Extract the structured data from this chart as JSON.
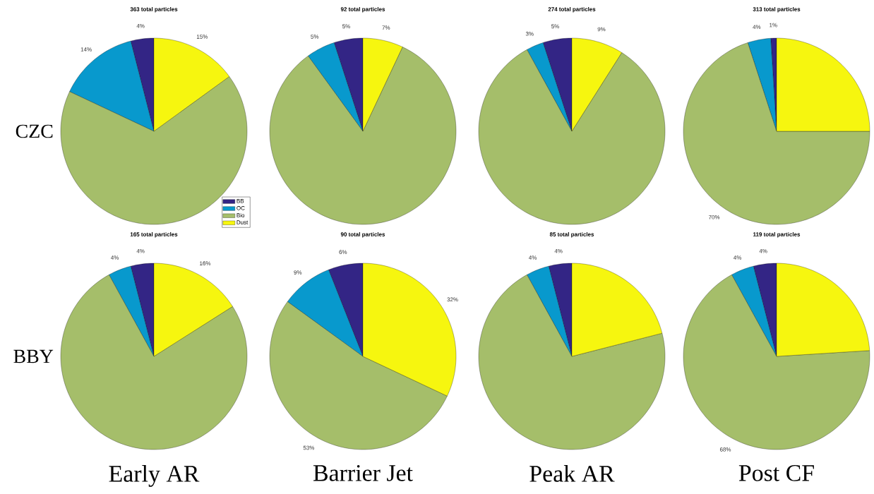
{
  "chart_data": [
    {
      "type": "pie",
      "title": "363 total particles",
      "ylabel": "CZC",
      "legend": "bottom right",
      "categories": [
        "BB",
        "OC",
        "Bio",
        "Dust"
      ],
      "values": [
        4,
        14,
        67,
        15
      ],
      "value_labels": [
        "4%",
        "14%",
        null,
        "15%"
      ],
      "colors": [
        "#332585",
        "#0899cd",
        "#a5be6a",
        "#f6f60f"
      ]
    },
    {
      "type": "pie",
      "title": "92 total particles",
      "values": [
        5,
        5,
        83,
        7
      ],
      "value_labels": [
        "5%",
        "5%",
        null,
        "7%"
      ],
      "colors": [
        "#332585",
        "#0899cd",
        "#a5be6a",
        "#f6f60f"
      ]
    },
    {
      "type": "pie",
      "title": "274 total particles",
      "values": [
        5,
        3,
        83,
        9
      ],
      "value_labels": [
        "5%",
        "3%",
        null,
        "9%"
      ],
      "colors": [
        "#332585",
        "#0899cd",
        "#a5be6a",
        "#f6f60f"
      ]
    },
    {
      "type": "pie",
      "title": "313 total particles",
      "values": [
        1,
        4,
        70,
        25
      ],
      "value_labels": [
        "1%",
        "4%",
        "70%",
        null
      ],
      "colors": [
        "#332585",
        "#0899cd",
        "#a5be6a",
        "#f6f60f"
      ]
    },
    {
      "type": "pie",
      "title": "165 total particles",
      "ylabel": "BBY",
      "xlabel": "Early AR",
      "values": [
        4,
        4,
        76,
        16
      ],
      "value_labels": [
        "4%",
        "4%",
        null,
        "16%"
      ],
      "colors": [
        "#332585",
        "#0899cd",
        "#a5be6a",
        "#f6f60f"
      ]
    },
    {
      "type": "pie",
      "title": "90 total particles",
      "xlabel": "Barrier Jet",
      "values": [
        6,
        9,
        53,
        32
      ],
      "value_labels": [
        "6%",
        "9%",
        "53%",
        "32%"
      ],
      "colors": [
        "#332585",
        "#0899cd",
        "#a5be6a",
        "#f6f60f"
      ]
    },
    {
      "type": "pie",
      "title": "85 total particles",
      "xlabel": "Peak AR",
      "values": [
        4,
        4,
        71,
        21
      ],
      "value_labels": [
        "4%",
        "4%",
        null,
        null
      ],
      "colors": [
        "#332585",
        "#0899cd",
        "#a5be6a",
        "#f6f60f"
      ]
    },
    {
      "type": "pie",
      "title": "119 total particles",
      "xlabel": "Post CF",
      "values": [
        4,
        4,
        68,
        24
      ],
      "value_labels": [
        "4%",
        "4%",
        "68%",
        null
      ],
      "colors": [
        "#332585",
        "#0899cd",
        "#a5be6a",
        "#f6f60f"
      ]
    }
  ]
}
